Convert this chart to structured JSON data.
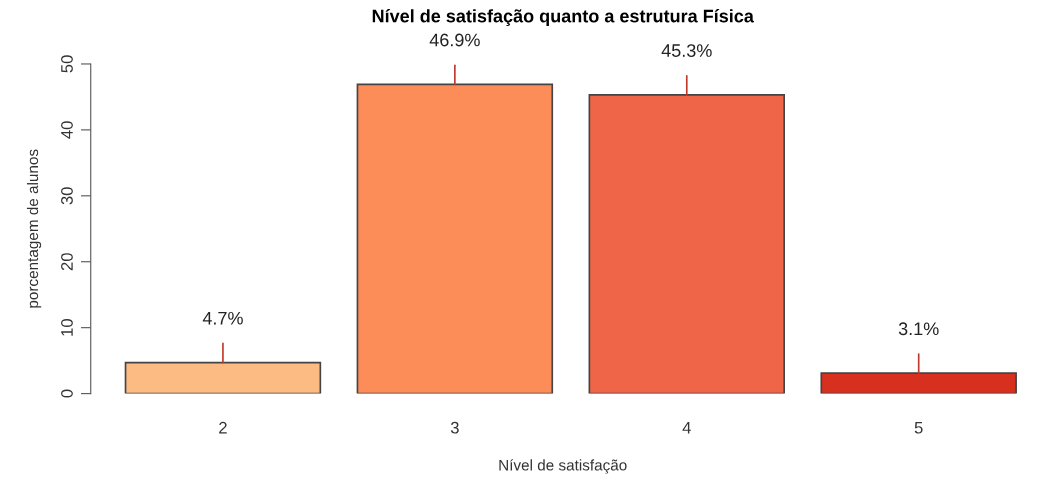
{
  "chart_data": {
    "type": "bar",
    "title": "Nível de satisfação quanto a estrutura Física",
    "xlabel": "Nível de satisfação",
    "ylabel": "porcentagem de alunos",
    "categories": [
      "2",
      "3",
      "4",
      "5"
    ],
    "values": [
      4.7,
      46.9,
      45.3,
      3.1
    ],
    "colors": [
      "#fdbb84",
      "#fc8d59",
      "#ef6548",
      "#d7301f"
    ],
    "value_labels": [
      "4.7%",
      "46.9%",
      "45.3%",
      "3.1%"
    ],
    "ylim": [
      0,
      50
    ],
    "yticks": [
      0,
      10,
      20,
      30,
      40,
      50
    ],
    "grid": false,
    "legend": false
  }
}
